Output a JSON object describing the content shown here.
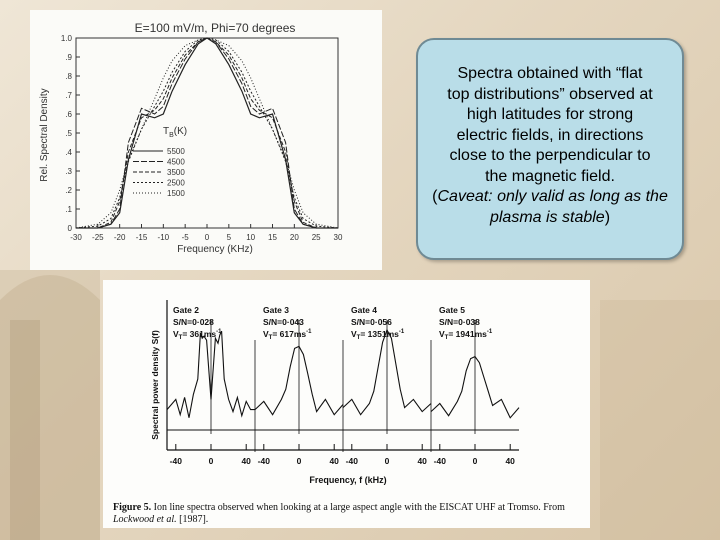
{
  "callout": {
    "lines": [
      "Spectra obtained with “flat",
      "top distributions” observed at",
      "high latitudes for strong",
      "electric fields, in directions",
      "close to the perpendicular to",
      "the magnetic field."
    ],
    "caveat_open": "(",
    "caveat_text": "Caveat: only valid as long as the plasma is stable",
    "caveat_close": ")"
  },
  "caption": {
    "label": "Figure 5.",
    "text": "Ion line spectra observed when looking at a large aspect angle with the EISCAT UHF at Tromso. From",
    "ref_authors": "Lockwood et al.",
    "ref_year": "[1987]."
  },
  "chart_data": [
    {
      "type": "line",
      "title": "E=100 mV/m, Phi=70 degrees",
      "xlabel": "Frequency (KHz)",
      "ylabel": "Rel. Spectral Density",
      "xlim": [
        -30,
        30
      ],
      "ylim": [
        0,
        1.0
      ],
      "xticks": [
        -30,
        -25,
        -20,
        -15,
        -10,
        -5,
        0,
        5,
        10,
        15,
        20,
        25,
        30
      ],
      "yticks": [
        0,
        0.1,
        0.2,
        0.3,
        0.4,
        0.5,
        0.6,
        0.7,
        0.8,
        0.9,
        1.0
      ],
      "ytick_labels": [
        "0",
        ".1",
        ".2",
        ".3",
        ".4",
        ".5",
        ".6",
        ".7",
        ".8",
        ".9",
        "1.0"
      ],
      "legend_title": "T",
      "legend_title_sub": "B",
      "legend_title_unit": "(K)",
      "legend_placement": "center-left",
      "grid": false,
      "series": [
        {
          "name": "5500",
          "x": [
            -30,
            -25,
            -22,
            -20,
            -18,
            -15,
            -12,
            -10,
            -8,
            -5,
            -2,
            0,
            2,
            5,
            8,
            10,
            12,
            15,
            18,
            20,
            22,
            25,
            30
          ],
          "values": [
            0,
            0,
            0.02,
            0.08,
            0.36,
            0.6,
            0.58,
            0.6,
            0.72,
            0.86,
            0.97,
            1.0,
            0.97,
            0.86,
            0.72,
            0.6,
            0.58,
            0.6,
            0.36,
            0.08,
            0.02,
            0,
            0
          ]
        },
        {
          "name": "4500",
          "x": [
            -30,
            -25,
            -22,
            -20,
            -18,
            -15,
            -12,
            -10,
            -8,
            -5,
            -2,
            0,
            2,
            5,
            8,
            10,
            12,
            15,
            18,
            20,
            22,
            25,
            30
          ],
          "values": [
            0,
            0,
            0.02,
            0.1,
            0.45,
            0.63,
            0.6,
            0.64,
            0.76,
            0.89,
            0.98,
            1.0,
            0.98,
            0.89,
            0.76,
            0.64,
            0.6,
            0.63,
            0.45,
            0.1,
            0.02,
            0,
            0
          ]
        },
        {
          "name": "3500",
          "x": [
            -30,
            -25,
            -22,
            -20,
            -18,
            -15,
            -12,
            -10,
            -8,
            -5,
            -2,
            0,
            2,
            5,
            8,
            10,
            12,
            15,
            18,
            20,
            22,
            25,
            30
          ],
          "values": [
            0,
            0,
            0.03,
            0.14,
            0.4,
            0.58,
            0.62,
            0.68,
            0.79,
            0.91,
            0.98,
            1.0,
            0.98,
            0.91,
            0.79,
            0.68,
            0.62,
            0.58,
            0.4,
            0.14,
            0.03,
            0,
            0
          ]
        },
        {
          "name": "2500",
          "x": [
            -30,
            -25,
            -22,
            -20,
            -18,
            -15,
            -12,
            -10,
            -8,
            -5,
            -2,
            0,
            2,
            5,
            8,
            10,
            12,
            15,
            18,
            20,
            22,
            25,
            30
          ],
          "values": [
            0,
            0.01,
            0.05,
            0.16,
            0.35,
            0.52,
            0.64,
            0.72,
            0.82,
            0.93,
            0.99,
            1.0,
            0.99,
            0.93,
            0.82,
            0.72,
            0.64,
            0.52,
            0.35,
            0.16,
            0.05,
            0.01,
            0
          ]
        },
        {
          "name": "1500",
          "x": [
            -30,
            -25,
            -22,
            -20,
            -18,
            -15,
            -12,
            -10,
            -8,
            -5,
            -2,
            0,
            2,
            5,
            8,
            10,
            12,
            15,
            18,
            20,
            22,
            25,
            30
          ],
          "values": [
            0,
            0.02,
            0.08,
            0.2,
            0.36,
            0.52,
            0.68,
            0.79,
            0.88,
            0.96,
            0.99,
            1.0,
            0.99,
            0.96,
            0.88,
            0.79,
            0.68,
            0.52,
            0.36,
            0.2,
            0.08,
            0.02,
            0
          ]
        }
      ]
    },
    {
      "type": "line",
      "xlabel": "Frequency, f (kHz)",
      "ylabel": "Spectral power density S(f)",
      "xticks": [
        -40,
        0,
        40
      ],
      "gates": [
        {
          "name": "Gate 2",
          "sn": "S/N=0·028",
          "vt_label": "V",
          "vt_sub": "T",
          "vt_value": "= 361ms",
          "vt_exp": "-1",
          "x": [
            -50,
            -40,
            -35,
            -30,
            -25,
            -20,
            -15,
            -12,
            -10,
            -8,
            -5,
            0,
            5,
            8,
            10,
            12,
            15,
            20,
            25,
            30,
            35,
            40,
            45,
            50
          ],
          "values": [
            0.2,
            0.3,
            0.15,
            0.32,
            0.12,
            0.35,
            0.5,
            0.95,
            0.9,
            0.92,
            0.88,
            0.3,
            0.9,
            0.85,
            0.93,
            0.97,
            0.5,
            0.3,
            0.18,
            0.32,
            0.14,
            0.28,
            0.2,
            0.2
          ]
        },
        {
          "name": "Gate 3",
          "sn": "S/N=0·043",
          "vt_label": "V",
          "vt_sub": "T",
          "vt_value": "= 617ms",
          "vt_exp": "-1",
          "x": [
            -50,
            -40,
            -30,
            -20,
            -15,
            -10,
            -5,
            0,
            5,
            10,
            15,
            20,
            30,
            40,
            50
          ],
          "values": [
            0.2,
            0.28,
            0.15,
            0.3,
            0.4,
            0.62,
            0.8,
            0.82,
            0.74,
            0.55,
            0.35,
            0.18,
            0.3,
            0.15,
            0.25
          ]
        },
        {
          "name": "Gate 4",
          "sn": "S/N=0·056",
          "vt_label": "V",
          "vt_sub": "T",
          "vt_value": "= 1351ms",
          "vt_exp": "-1",
          "x": [
            -50,
            -40,
            -30,
            -20,
            -15,
            -10,
            -5,
            0,
            5,
            10,
            15,
            20,
            30,
            40,
            50
          ],
          "values": [
            0.22,
            0.3,
            0.15,
            0.26,
            0.38,
            0.62,
            0.86,
            0.98,
            0.9,
            0.65,
            0.4,
            0.22,
            0.3,
            0.18,
            0.26
          ]
        },
        {
          "name": "Gate 5",
          "sn": "S/N=0·038",
          "vt_label": "V",
          "vt_sub": "T",
          "vt_value": "= 1941ms",
          "vt_exp": "-1",
          "x": [
            -50,
            -40,
            -30,
            -20,
            -15,
            -10,
            -5,
            0,
            5,
            10,
            15,
            20,
            30,
            40,
            50
          ],
          "values": [
            0.18,
            0.26,
            0.14,
            0.28,
            0.38,
            0.58,
            0.7,
            0.72,
            0.66,
            0.52,
            0.38,
            0.24,
            0.3,
            0.12,
            0.22
          ]
        }
      ]
    }
  ]
}
